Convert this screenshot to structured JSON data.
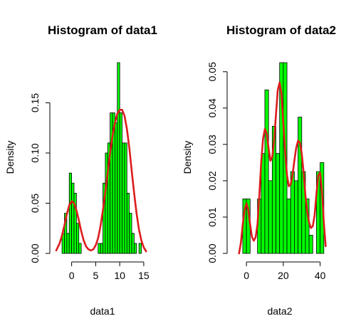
{
  "colors": {
    "bar_fill": "#00ff00",
    "bar_stroke": "#000000",
    "density_line": "#dd1c1c"
  },
  "chart_data": [
    {
      "type": "bar",
      "title": "Histogram of data1",
      "xlabel": "data1",
      "ylabel": "Density",
      "xlim": [
        -3.2,
        16.2
      ],
      "ylim": [
        0,
        0.19
      ],
      "xticks": [
        0,
        5,
        10,
        15
      ],
      "yticks": [
        0.0,
        0.05,
        0.1,
        0.15
      ],
      "ytick_labels": [
        "0.00",
        "0.05",
        "0.10",
        "0.15"
      ],
      "bin_width": 0.5,
      "bins_start": [
        -2,
        -1.5,
        -1,
        -0.5,
        0,
        0.5,
        1,
        1.5,
        2,
        2.5,
        3,
        3.5,
        4,
        4.5,
        5,
        5.5,
        6,
        6.5,
        7,
        7.5,
        8,
        8.5,
        9,
        9.5,
        10,
        10.5,
        11,
        11.5,
        12,
        12.5,
        13,
        13.5,
        14,
        14.5
      ],
      "values": [
        0.02,
        0.04,
        0.02,
        0.08,
        0.07,
        0.06,
        0.03,
        0.01,
        0.0,
        0.0,
        0.0,
        0.0,
        0.0,
        0.0,
        0.0,
        0.01,
        0.01,
        0.07,
        0.1,
        0.11,
        0.14,
        0.14,
        0.13,
        0.19,
        0.14,
        0.11,
        0.11,
        0.06,
        0.04,
        0.02,
        0.01,
        0.0,
        0.01,
        0.0
      ],
      "density": {
        "x": [
          -3.2,
          -2.5,
          -2,
          -1.5,
          -1,
          -0.5,
          0,
          0.5,
          1,
          1.5,
          2,
          2.5,
          3,
          3.5,
          4,
          4.5,
          5,
          5.5,
          6,
          6.5,
          7,
          7.5,
          8,
          8.5,
          9,
          9.5,
          10,
          10.5,
          11,
          11.5,
          12,
          12.5,
          13,
          13.5,
          14,
          14.5,
          15,
          15.5
        ],
        "y": [
          0.003,
          0.01,
          0.018,
          0.028,
          0.039,
          0.048,
          0.052,
          0.05,
          0.043,
          0.033,
          0.022,
          0.013,
          0.007,
          0.004,
          0.003,
          0.004,
          0.008,
          0.015,
          0.027,
          0.043,
          0.061,
          0.08,
          0.1,
          0.117,
          0.13,
          0.139,
          0.143,
          0.143,
          0.137,
          0.124,
          0.105,
          0.082,
          0.06,
          0.04,
          0.024,
          0.013,
          0.006,
          0.002
        ]
      }
    },
    {
      "type": "bar",
      "title": "Histogram of data2",
      "xlabel": "data2",
      "ylabel": "Density",
      "xlim": [
        -7,
        44
      ],
      "ylim": [
        0,
        0.0525
      ],
      "xticks": [
        0,
        20,
        40
      ],
      "yticks": [
        0.0,
        0.01,
        0.02,
        0.03,
        0.04,
        0.05
      ],
      "ytick_labels": [
        "0.00",
        "0.01",
        "0.02",
        "0.03",
        "0.04",
        "0.05"
      ],
      "bin_width": 2,
      "bins_start": [
        -2,
        0,
        2,
        4,
        6,
        8,
        10,
        12,
        14,
        16,
        18,
        20,
        22,
        24,
        26,
        28,
        30,
        32,
        34,
        36,
        38,
        40
      ],
      "values": [
        0.015,
        0.015,
        0.0,
        0.0,
        0.015,
        0.0275,
        0.045,
        0.02,
        0.035,
        0.0275,
        0.0525,
        0.0525,
        0.015,
        0.0225,
        0.02,
        0.0375,
        0.0225,
        0.015,
        0.005,
        0.0,
        0.0225,
        0.025
      ],
      "density": {
        "x": [
          -4,
          -3,
          -2,
          -1,
          0,
          1,
          2,
          3,
          4,
          5,
          6,
          7,
          8,
          9,
          10,
          11,
          12,
          13,
          14,
          15,
          16,
          17,
          18,
          19,
          20,
          21,
          22,
          23,
          24,
          25,
          26,
          27,
          28,
          29,
          30,
          31,
          32,
          33,
          34,
          35,
          36,
          37,
          38,
          39,
          40,
          41,
          42,
          43
        ],
        "y": [
          0.0,
          0.003,
          0.008,
          0.012,
          0.0138,
          0.012,
          0.008,
          0.0045,
          0.0035,
          0.0045,
          0.008,
          0.016,
          0.025,
          0.0315,
          0.0342,
          0.033,
          0.029,
          0.0255,
          0.0265,
          0.031,
          0.038,
          0.045,
          0.047,
          0.044,
          0.036,
          0.028,
          0.0215,
          0.0185,
          0.019,
          0.0215,
          0.0255,
          0.029,
          0.031,
          0.0305,
          0.0275,
          0.0225,
          0.016,
          0.0115,
          0.0085,
          0.007,
          0.0075,
          0.0105,
          0.0165,
          0.0215,
          0.0222,
          0.017,
          0.0085,
          0.002
        ]
      }
    }
  ]
}
